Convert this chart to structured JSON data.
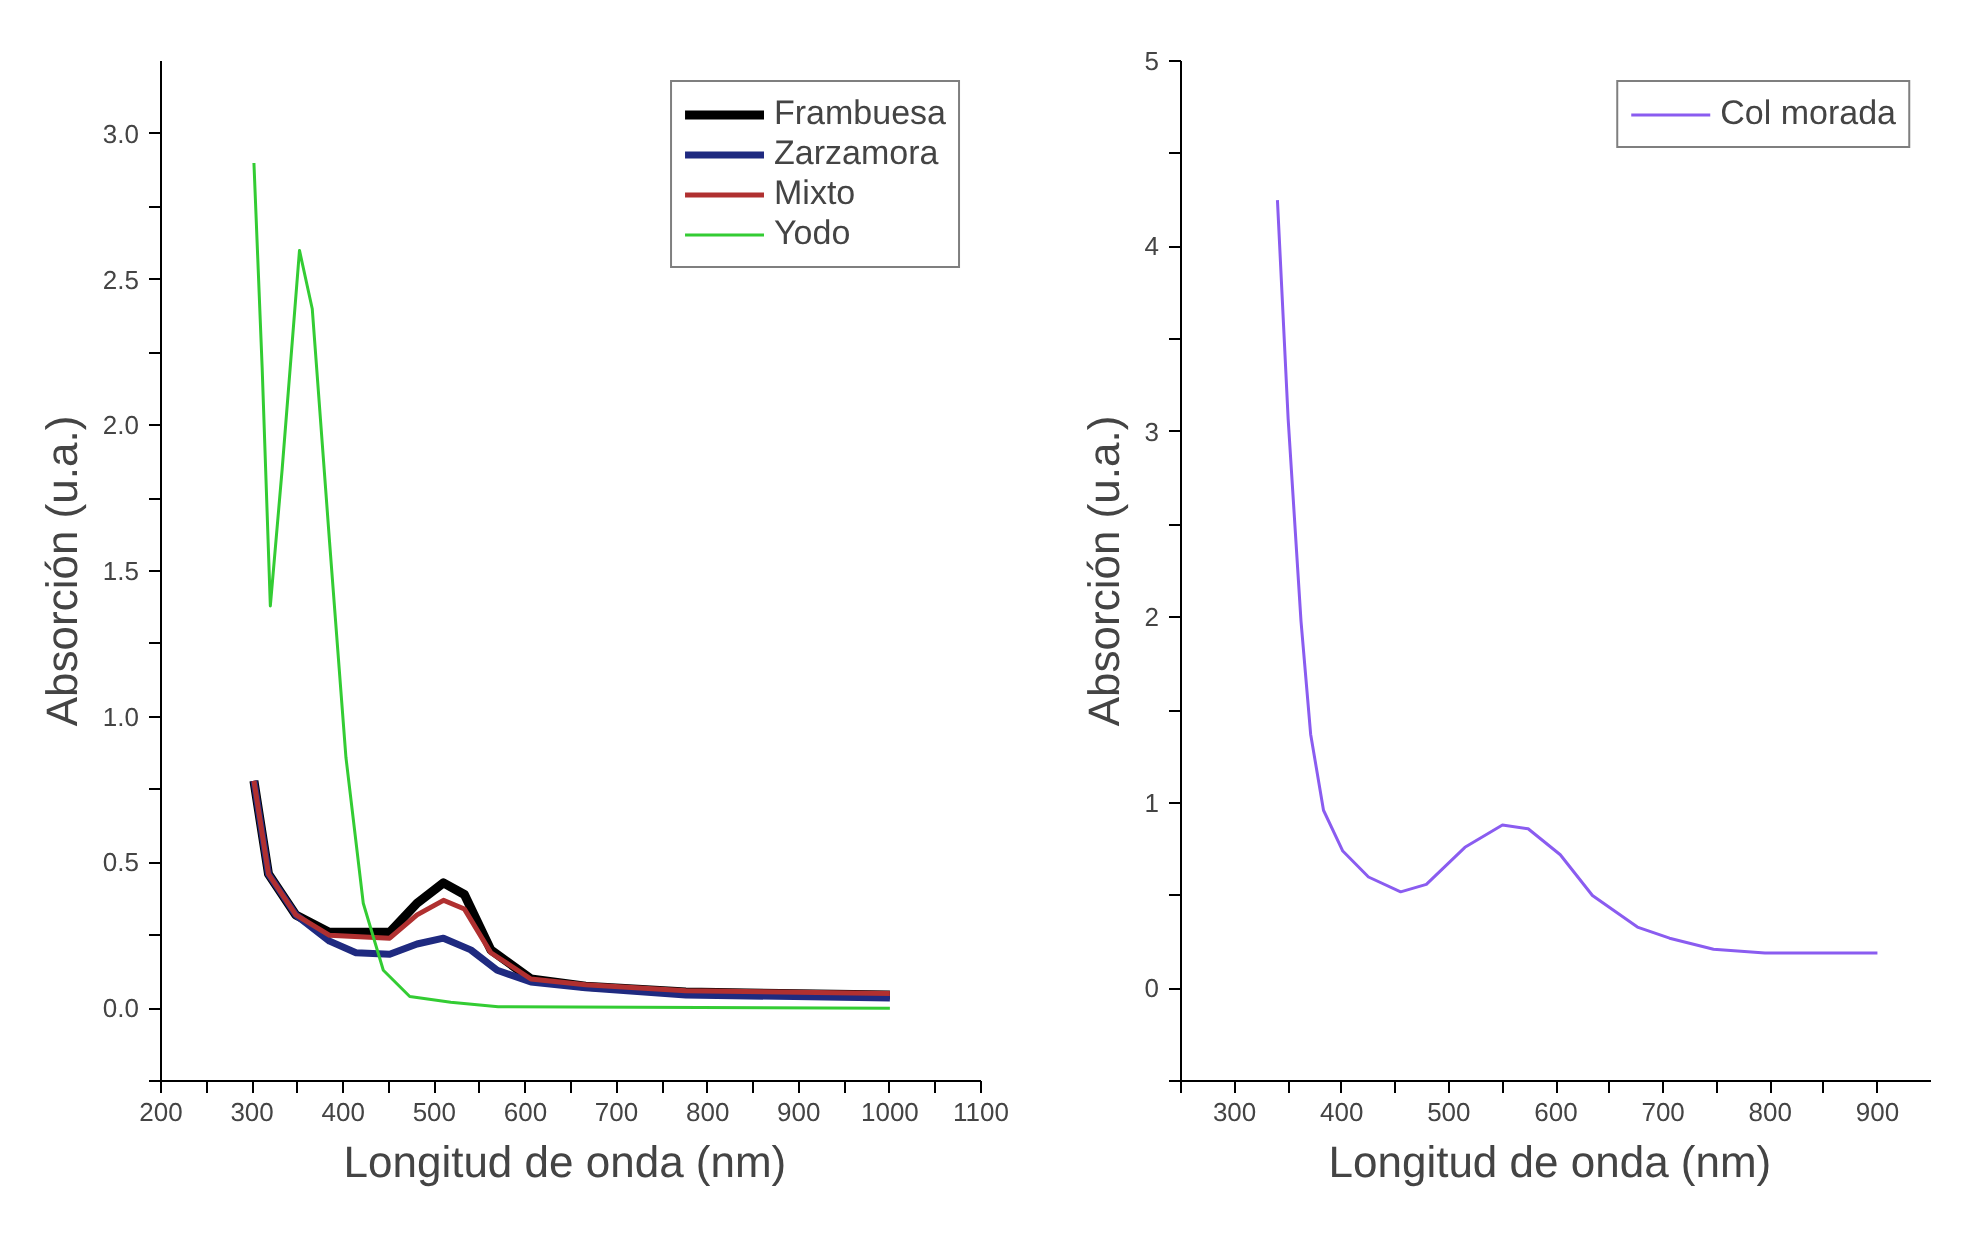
{
  "chart_data": [
    {
      "type": "line",
      "xlabel": "Longitud de onda  (nm)",
      "ylabel": "Absorción (u.a.)",
      "legend": "top right",
      "grid": false,
      "xlim": [
        200,
        1100
      ],
      "ylim": [
        -0.25,
        3.25
      ],
      "xticks": [
        200,
        {
          "value": 250,
          "label": null
        },
        300,
        {
          "value": 350,
          "label": null
        },
        400,
        {
          "value": 450,
          "label": null
        },
        500,
        {
          "value": 550,
          "label": null
        },
        600,
        {
          "value": 650,
          "label": null
        },
        700,
        {
          "value": 750,
          "label": null
        },
        800,
        {
          "value": 850,
          "label": null
        },
        900,
        {
          "value": 950,
          "label": null
        },
        1000,
        {
          "value": 1050,
          "label": null
        },
        1100
      ],
      "yticks": [
        {
          "value": -0.25,
          "label": null
        },
        {
          "value": 0,
          "label": "0.0"
        },
        {
          "value": 0.25,
          "label": null
        },
        {
          "value": 0.5,
          "label": "0.5"
        },
        {
          "value": 0.75,
          "label": null
        },
        {
          "value": 1,
          "label": "1.0"
        },
        {
          "value": 1.25,
          "label": null
        },
        {
          "value": 1.5,
          "label": "1.5"
        },
        {
          "value": 1.75,
          "label": null
        },
        {
          "value": 2,
          "label": "2.0"
        },
        {
          "value": 2.25,
          "label": null
        },
        {
          "value": 2.5,
          "label": "2.5"
        },
        {
          "value": 2.75,
          "label": null
        },
        {
          "value": 3,
          "label": "3.0"
        }
      ],
      "series": [
        {
          "name": "Frambuesa",
          "color": "#000000",
          "x": [
            302,
            318,
            348,
            385,
            451,
            481,
            510,
            533,
            562,
            606,
            666,
            776,
            1000
          ],
          "values": [
            0.78,
            0.46,
            0.32,
            0.26,
            0.26,
            0.36,
            0.43,
            0.39,
            0.2,
            0.1,
            0.075,
            0.055,
            0.045
          ]
        },
        {
          "name": "Zarzamora",
          "color": "#1f2a80",
          "x": [
            302,
            318,
            348,
            385,
            414,
            451,
            481,
            510,
            540,
            569,
            606,
            666,
            776,
            1000
          ],
          "values": [
            0.78,
            0.46,
            0.32,
            0.23,
            0.19,
            0.185,
            0.22,
            0.24,
            0.2,
            0.13,
            0.09,
            0.07,
            0.045,
            0.035
          ]
        },
        {
          "name": "Mixto",
          "color": "#b03030",
          "x": [
            302,
            318,
            348,
            385,
            451,
            481,
            510,
            533,
            562,
            606,
            666,
            776,
            1000
          ],
          "values": [
            0.78,
            0.46,
            0.32,
            0.25,
            0.24,
            0.32,
            0.37,
            0.34,
            0.19,
            0.1,
            0.08,
            0.06,
            0.05
          ]
        },
        {
          "name": "Yodo",
          "color": "#33cc33",
          "x": [
            302,
            311,
            320,
            333,
            352,
            366,
            385,
            403,
            422,
            444,
            473,
            518,
            570,
            1000
          ],
          "values": [
            2.9,
            2.2,
            1.38,
            1.85,
            2.6,
            2.4,
            1.6,
            0.86,
            0.36,
            0.13,
            0.04,
            0.02,
            0.005,
            0.0
          ]
        }
      ]
    },
    {
      "type": "line",
      "xlabel": "Longitud de onda  (nm)",
      "ylabel": "Absorción (u.a.)",
      "legend": "top right",
      "grid": false,
      "xlim": [
        250,
        950
      ],
      "ylim": [
        -0.5,
        5
      ],
      "xticks": [
        {
          "value": 250,
          "label": null
        },
        300,
        {
          "value": 350,
          "label": null
        },
        400,
        {
          "value": 450,
          "label": null
        },
        500,
        {
          "value": 550,
          "label": null
        },
        600,
        {
          "value": 650,
          "label": null
        },
        700,
        {
          "value": 750,
          "label": null
        },
        800,
        {
          "value": 850,
          "label": null
        },
        900
      ],
      "yticks": [
        {
          "value": -0.5,
          "label": null
        },
        0,
        {
          "value": 0.5,
          "label": null
        },
        1,
        {
          "value": 1.5,
          "label": null
        },
        2,
        {
          "value": 2.5,
          "label": null
        },
        3,
        {
          "value": 3.5,
          "label": null
        },
        4,
        {
          "value": 4.5,
          "label": null
        },
        5
      ],
      "series": [
        {
          "name": "Col morada",
          "color": "#8a5cf0",
          "x": [
            340,
            350,
            362,
            371,
            383,
            401,
            425,
            455,
            479,
            515,
            550,
            574,
            604,
            634,
            676,
            706,
            747,
            795,
            900
          ],
          "values": [
            4.25,
            3.07,
            1.98,
            1.37,
            0.96,
            0.74,
            0.6,
            0.52,
            0.56,
            0.76,
            0.88,
            0.86,
            0.72,
            0.5,
            0.33,
            0.27,
            0.21,
            0.19,
            0.19
          ]
        }
      ]
    }
  ]
}
